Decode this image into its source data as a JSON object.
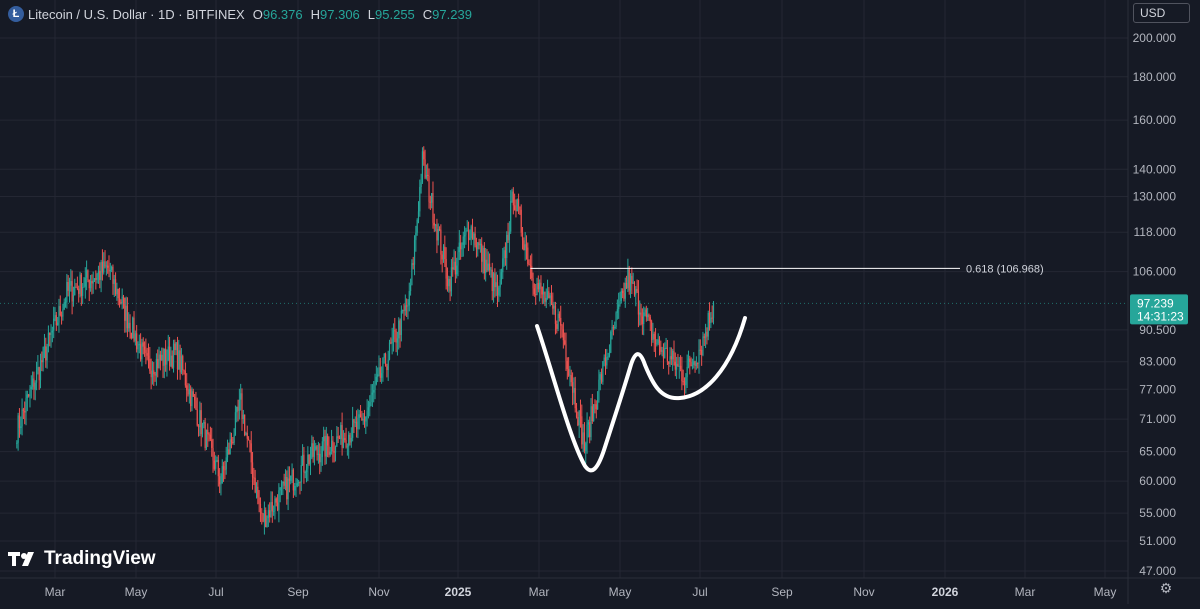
{
  "header": {
    "symbol_title": "Litecoin / U.S. Dollar · 1D · BITFINEX",
    "icon": "litecoin-icon",
    "ohlc": [
      {
        "key": "O",
        "value": "96.376"
      },
      {
        "key": "H",
        "value": "97.306"
      },
      {
        "key": "L",
        "value": "95.255"
      },
      {
        "key": "C",
        "value": "97.239"
      }
    ]
  },
  "currency_label": "USD",
  "settings_icon": "gear-icon",
  "logo_text": "TradingView",
  "colors": {
    "background": "#161a25",
    "grid": "#242733",
    "up": "#26a69a",
    "down": "#ef5350",
    "price_label": "#26a69a",
    "drawing": "#ffffff"
  },
  "chart_data": {
    "type": "candlestick",
    "title": "Litecoin / U.S. Dollar · 1D · BITFINEX",
    "scale": "log",
    "y_axis_ticks": [
      "200.000",
      "180.000",
      "160.000",
      "140.000",
      "130.000",
      "118.000",
      "106.000",
      "90.500",
      "83.000",
      "77.000",
      "71.000",
      "65.000",
      "60.000",
      "55.000",
      "51.000",
      "47.000"
    ],
    "x_axis_labels": [
      "Mar",
      "May",
      "Jul",
      "Sep",
      "Nov",
      "2025",
      "Mar",
      "May",
      "Jul",
      "Sep",
      "Nov",
      "2026",
      "Mar",
      "May"
    ],
    "current_price": "97.239",
    "countdown": "14:31:23",
    "fib_level": {
      "label": "0.618 (106.968)",
      "value": 106.968
    },
    "key_points": [
      {
        "date": "2024-02-01",
        "price": 69
      },
      {
        "date": "2024-03-10",
        "price": 100
      },
      {
        "date": "2024-04-10",
        "price": 107
      },
      {
        "date": "2024-05-10",
        "price": 82
      },
      {
        "date": "2024-06-01",
        "price": 85
      },
      {
        "date": "2024-07-05",
        "price": 60
      },
      {
        "date": "2024-07-20",
        "price": 74
      },
      {
        "date": "2024-08-05",
        "price": 54
      },
      {
        "date": "2024-09-10",
        "price": 64
      },
      {
        "date": "2024-10-20",
        "price": 70
      },
      {
        "date": "2024-11-25",
        "price": 98
      },
      {
        "date": "2024-12-05",
        "price": 143
      },
      {
        "date": "2024-12-25",
        "price": 103
      },
      {
        "date": "2025-01-10",
        "price": 120
      },
      {
        "date": "2025-02-01",
        "price": 99
      },
      {
        "date": "2025-02-12",
        "price": 131
      },
      {
        "date": "2025-02-28",
        "price": 103
      },
      {
        "date": "2025-03-20",
        "price": 92
      },
      {
        "date": "2025-04-07",
        "price": 66
      },
      {
        "date": "2025-04-20",
        "price": 80
      },
      {
        "date": "2025-05-10",
        "price": 104
      },
      {
        "date": "2025-06-01",
        "price": 87
      },
      {
        "date": "2025-06-22",
        "price": 80
      },
      {
        "date": "2025-07-05",
        "price": 87
      },
      {
        "date": "2025-07-14",
        "price": 97.239
      }
    ]
  }
}
